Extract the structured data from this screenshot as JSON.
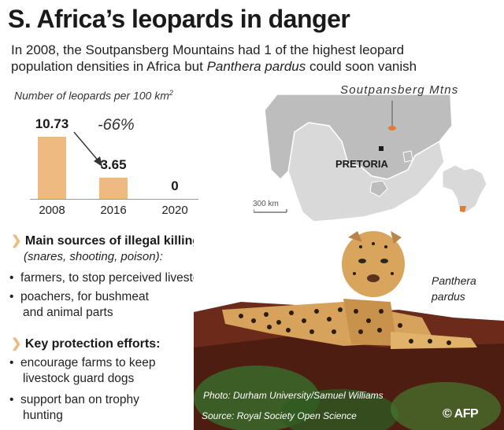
{
  "title": "S. Africa’s leopards in danger",
  "subtitle_line1": "In 2008, the Soutpansberg Mountains had 1 of the highest leopard",
  "subtitle_line2_pre": "population densities in Africa but ",
  "subtitle_line2_italic": "Panthera pardus",
  "subtitle_line2_post": " could soon vanish",
  "chart_label_text": "Number of leopards per 100 km",
  "chart_label_sup": "2",
  "change_label": "-66%",
  "chart_data": {
    "type": "bar",
    "categories": [
      "2008",
      "2016",
      "2020"
    ],
    "values": [
      10.73,
      3.65,
      0
    ],
    "value_labels": [
      "10.73",
      "3.65",
      "0"
    ],
    "title": "Number of leopards per 100 km2",
    "annotation": "-66%",
    "color": "#efb982"
  },
  "map": {
    "location_label": "Soutpansberg Mtns",
    "city_label": "PRETORIA",
    "scale_label": "300 km",
    "land_color": "#d9d9d9",
    "neighbor_color": "#bdbdbd",
    "highlight_color": "#e07b39"
  },
  "section1": {
    "heading": "Main sources of illegal killings",
    "subheading": "(snares, shooting, poison):",
    "bullets": [
      [
        "farmers, to stop perceived livestock predation"
      ],
      [
        "poachers, for bushmeat",
        "and animal parts"
      ]
    ]
  },
  "section2": {
    "heading": "Key protection efforts:",
    "bullets": [
      [
        "encourage farms to keep",
        "livestock guard dogs"
      ],
      [
        "support ban on trophy",
        "hunting"
      ]
    ]
  },
  "photo": {
    "caption_line1": "Panthera",
    "caption_line2": "pardus",
    "credit": "Photo: Durham University/Samuel Williams",
    "source": "Source: Royal Society Open Science",
    "copyright": "© AFP"
  }
}
